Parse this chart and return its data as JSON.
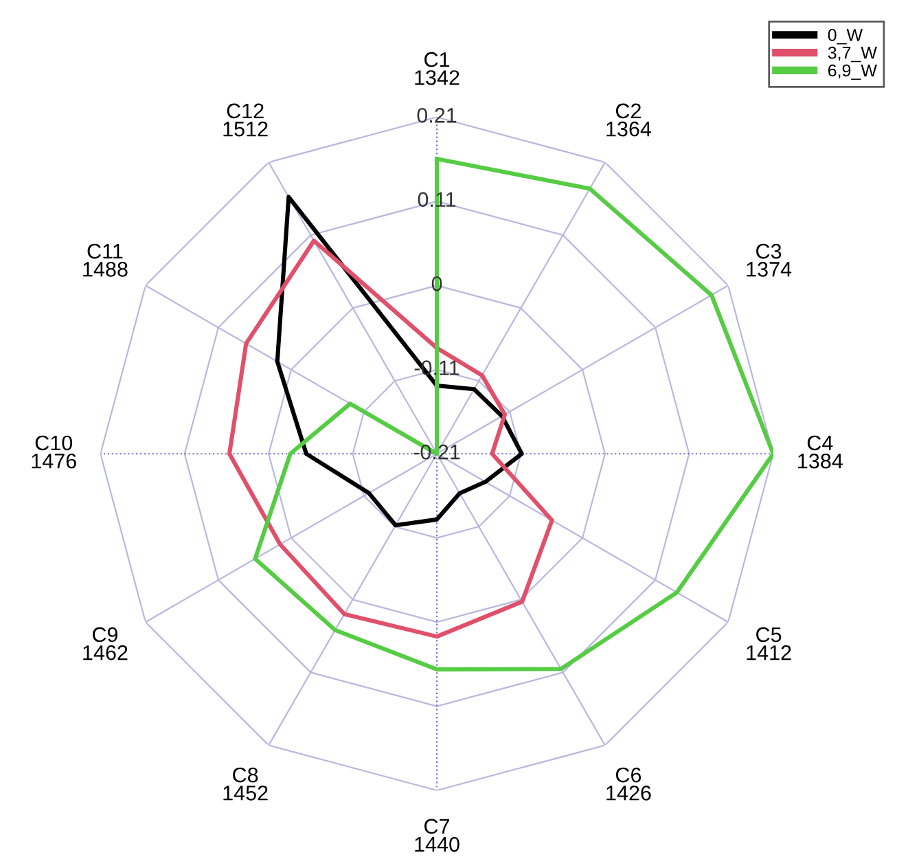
{
  "chart_data": {
    "type": "radar",
    "categories": [
      "C1\n1342",
      "C2\n1364",
      "C3\n1374",
      "C4\n1384",
      "C5\n1412",
      "C6\n1426",
      "C7\n1440",
      "C8\n1452",
      "C9\n1462",
      "C10\n1476",
      "C11\n1488",
      "C12\n1512"
    ],
    "series": [
      {
        "name": "0_W",
        "color": "#000000",
        "values": [
          -0.125,
          -0.117,
          -0.116,
          -0.104,
          -0.14,
          -0.153,
          -0.128,
          -0.107,
          -0.112,
          -0.047,
          0.02,
          0.16
        ]
      },
      {
        "name": "3,7_W",
        "color": "#e0506a",
        "values": [
          -0.078,
          -0.097,
          -0.112,
          -0.141,
          -0.044,
          0.003,
          0.018,
          0.021,
          0.016,
          0.049,
          0.065,
          0.097
        ]
      },
      {
        "name": "6,9_W",
        "color": "#55cc44",
        "values": [
          0.158,
          0.172,
          0.186,
          0.21,
          0.136,
          0.1,
          0.059,
          0.044,
          0.052,
          -0.027,
          -0.085,
          -0.21
        ]
      }
    ],
    "ylim": [
      -0.21,
      0.21
    ],
    "yticks": [
      {
        "value": -0.21,
        "label": "-0.21"
      },
      {
        "value": -0.105,
        "label": "-0.11"
      },
      0,
      {
        "value": 0.105,
        "label": "0.11"
      },
      0.21
    ],
    "grid": true,
    "legend": "top right",
    "line_style": "solid",
    "marker": "none"
  }
}
